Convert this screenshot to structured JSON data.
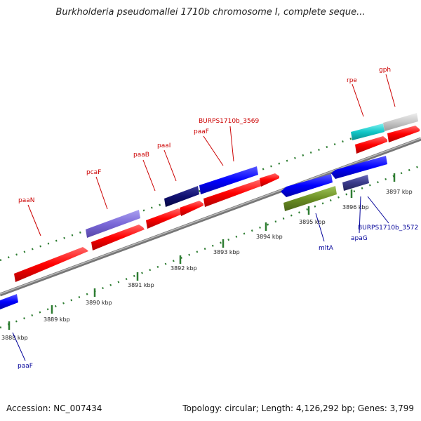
{
  "title": "Burkholderia pseudomallei 1710b chromosome I, complete seque...",
  "footer": {
    "accession": "Accession: NC_007434",
    "summary": "Topology: circular; Length: 4,126,292 bp; Genes: 3,799"
  },
  "tick_labels": [
    "3888 kbp",
    "3889 kbp",
    "3890 kbp",
    "3891 kbp",
    "3892 kbp",
    "3893 kbp",
    "3894 kbp",
    "3895 kbp",
    "3896 kbp",
    "3897 kbp"
  ],
  "gene_labels": {
    "forward": [
      "paaN",
      "pcaF",
      "paaB",
      "paaI",
      "paaF",
      "BURPS1710b_3569",
      "rpe",
      "gph"
    ],
    "reverse": [
      "paaF",
      "mltA",
      "apaG",
      "BURPS1710b_3572"
    ]
  },
  "colors": {
    "cds": "#ff0000",
    "gene_forward": "#0000ff",
    "gene_reverse": "#0000ff",
    "label_forward": "#cc0000",
    "label_reverse": "#000099",
    "backbone": "#888888",
    "tick": "#2e7d32"
  }
}
